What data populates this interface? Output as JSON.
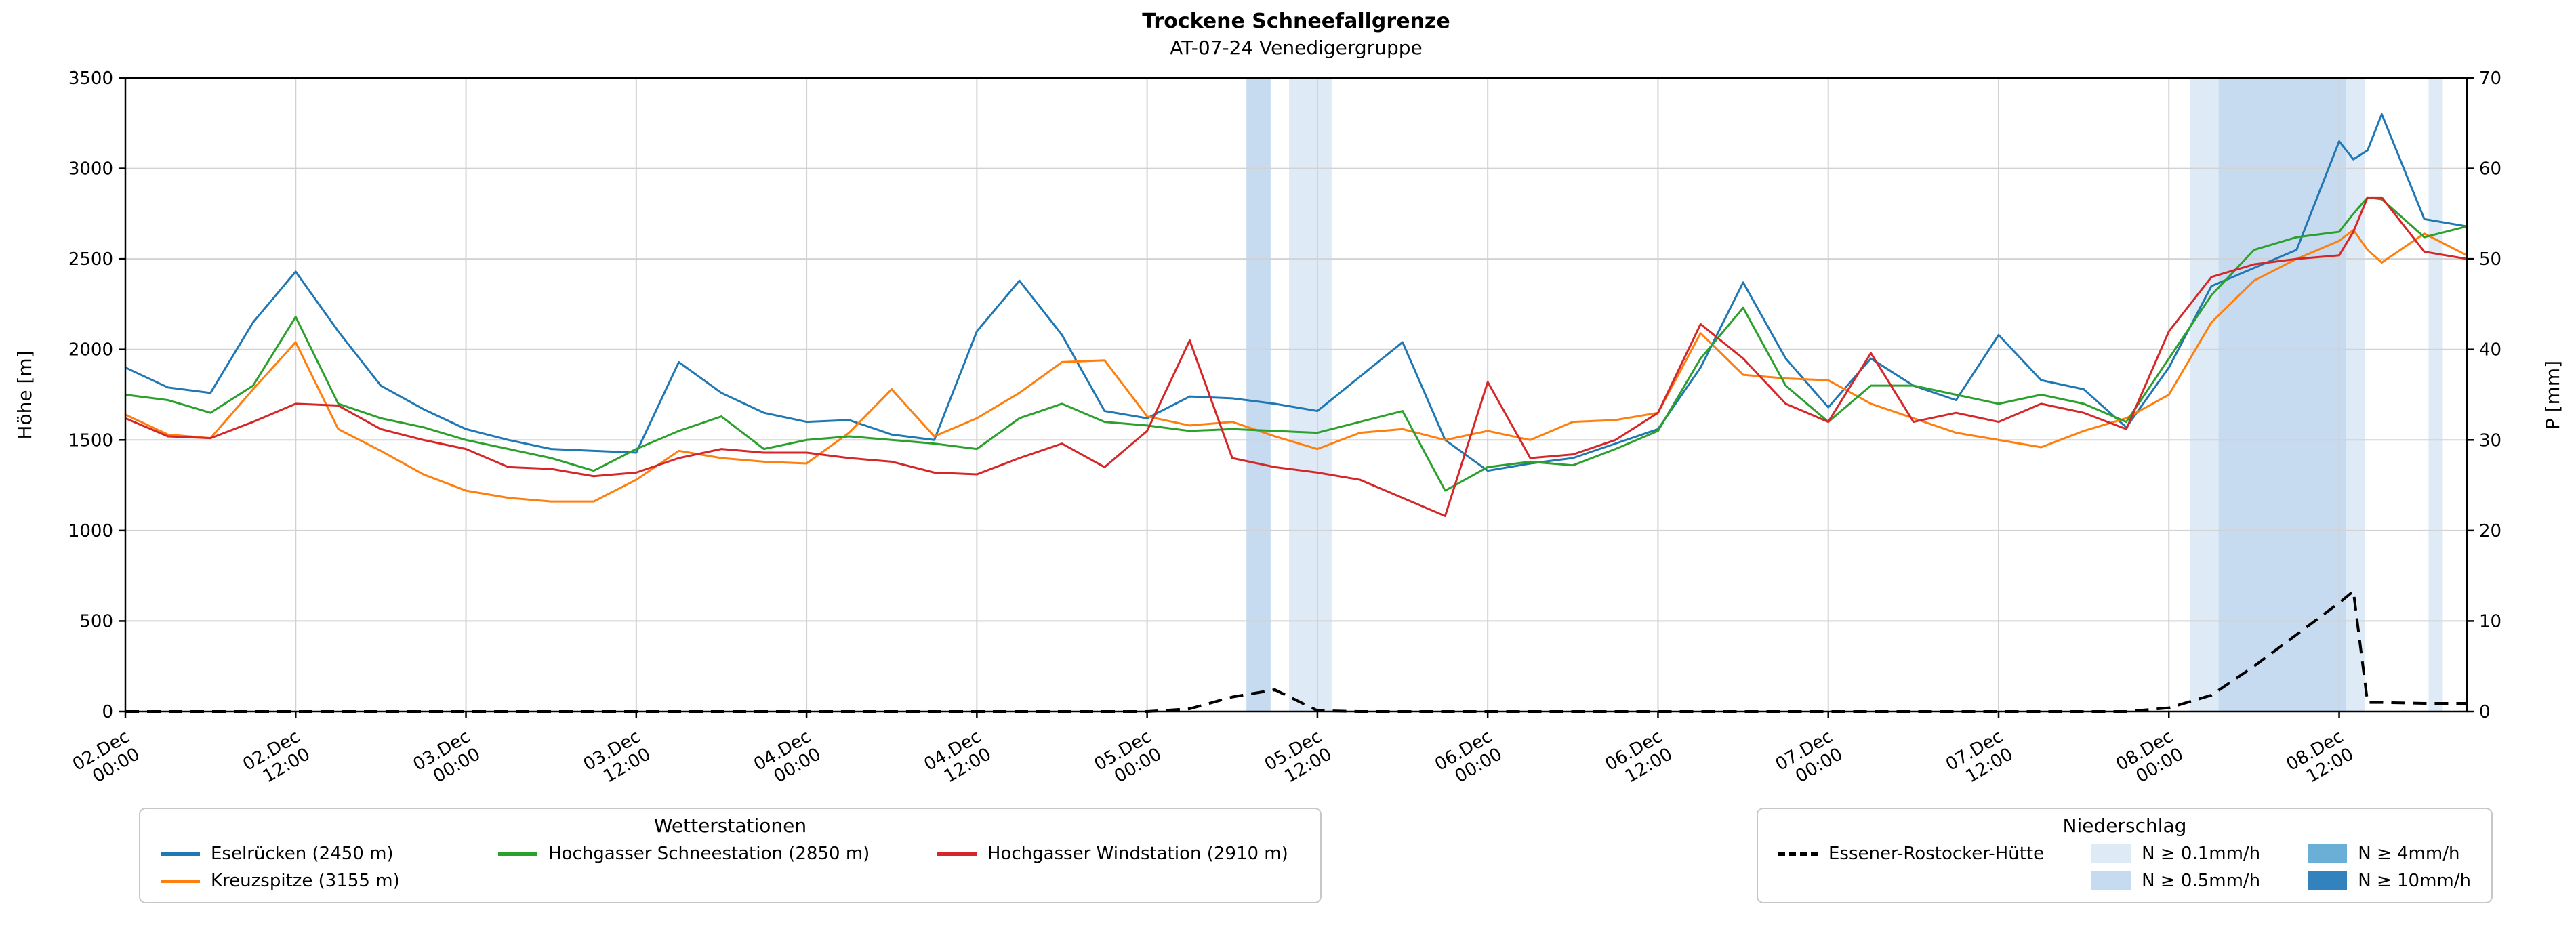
{
  "title": "Trockene Schneefallgrenze",
  "subtitle": "AT-07-24 Venedigergruppe",
  "axes": {
    "y_left": {
      "label": "Höhe [m]",
      "min": 0,
      "max": 3500,
      "ticks": [
        0,
        500,
        1000,
        1500,
        2000,
        2500,
        3000,
        3500
      ]
    },
    "y_right": {
      "label": "P [mm]",
      "min": 0,
      "max": 70,
      "ticks": [
        0,
        10,
        20,
        30,
        40,
        50,
        60,
        70
      ]
    },
    "x": {
      "min": 0,
      "max": 165,
      "ticks": [
        {
          "h": 0,
          "line1": "02.Dec",
          "line2": "00:00"
        },
        {
          "h": 12,
          "line1": "02.Dec",
          "line2": "12:00"
        },
        {
          "h": 24,
          "line1": "03.Dec",
          "line2": "00:00"
        },
        {
          "h": 36,
          "line1": "03.Dec",
          "line2": "12:00"
        },
        {
          "h": 48,
          "line1": "04.Dec",
          "line2": "00:00"
        },
        {
          "h": 60,
          "line1": "04.Dec",
          "line2": "12:00"
        },
        {
          "h": 72,
          "line1": "05.Dec",
          "line2": "00:00"
        },
        {
          "h": 84,
          "line1": "05.Dec",
          "line2": "12:00"
        },
        {
          "h": 96,
          "line1": "06.Dec",
          "line2": "00:00"
        },
        {
          "h": 108,
          "line1": "06.Dec",
          "line2": "12:00"
        },
        {
          "h": 120,
          "line1": "07.Dec",
          "line2": "00:00"
        },
        {
          "h": 132,
          "line1": "07.Dec",
          "line2": "12:00"
        },
        {
          "h": 144,
          "line1": "08.Dec",
          "line2": "00:00"
        },
        {
          "h": 156,
          "line1": "08.Dec",
          "line2": "12:00"
        }
      ]
    }
  },
  "chart_data": {
    "type": "line",
    "x_unit": "hours since 02.Dec 00:00",
    "x": [
      0,
      3,
      6,
      9,
      12,
      15,
      18,
      21,
      24,
      27,
      30,
      33,
      36,
      39,
      42,
      45,
      48,
      51,
      54,
      57,
      60,
      63,
      66,
      69,
      72,
      75,
      78,
      81,
      84,
      87,
      90,
      93,
      96,
      99,
      102,
      105,
      108,
      111,
      114,
      117,
      120,
      123,
      126,
      129,
      132,
      135,
      138,
      141,
      144,
      147,
      150,
      153,
      156,
      157,
      158,
      159,
      162,
      165
    ],
    "series": [
      {
        "name": "Eselrücken (2450 m)",
        "color": "#1f77b4",
        "axis": "left",
        "style": "solid",
        "values": [
          1900,
          1790,
          1760,
          2150,
          2430,
          2100,
          1800,
          1670,
          1560,
          1500,
          1450,
          1440,
          1430,
          1930,
          1760,
          1650,
          1600,
          1610,
          1530,
          1500,
          2100,
          2380,
          2080,
          1660,
          1620,
          1740,
          1730,
          1700,
          1660,
          1850,
          2040,
          1500,
          1330,
          1370,
          1400,
          1480,
          1560,
          1900,
          2370,
          1950,
          1680,
          1950,
          1800,
          1720,
          2080,
          1830,
          1780,
          1570,
          1900,
          2350,
          2450,
          2550,
          3150,
          3050,
          3100,
          3300,
          2720,
          2680
        ]
      },
      {
        "name": "Kreuzspitze (3155 m)",
        "color": "#ff7f0e",
        "axis": "left",
        "style": "solid",
        "values": [
          1640,
          1530,
          1510,
          1780,
          2040,
          1560,
          1440,
          1310,
          1220,
          1180,
          1160,
          1160,
          1280,
          1440,
          1400,
          1380,
          1370,
          1540,
          1780,
          1520,
          1620,
          1760,
          1930,
          1940,
          1630,
          1580,
          1600,
          1520,
          1450,
          1540,
          1560,
          1500,
          1550,
          1500,
          1600,
          1610,
          1650,
          2090,
          1860,
          1840,
          1830,
          1700,
          1620,
          1540,
          1500,
          1460,
          1550,
          1620,
          1750,
          2150,
          2380,
          2500,
          2600,
          2660,
          2550,
          2480,
          2640,
          2520
        ]
      },
      {
        "name": "Hochgasser Schneestation (2850 m)",
        "color": "#2ca02c",
        "axis": "left",
        "style": "solid",
        "values": [
          1750,
          1720,
          1650,
          1800,
          2180,
          1700,
          1620,
          1570,
          1500,
          1450,
          1400,
          1330,
          1450,
          1550,
          1630,
          1450,
          1500,
          1520,
          1500,
          1480,
          1450,
          1620,
          1700,
          1600,
          1580,
          1550,
          1560,
          1550,
          1540,
          1600,
          1660,
          1220,
          1350,
          1380,
          1360,
          1450,
          1550,
          1950,
          2230,
          1800,
          1600,
          1800,
          1800,
          1750,
          1700,
          1750,
          1700,
          1600,
          1950,
          2300,
          2550,
          2620,
          2650,
          2750,
          2840,
          2830,
          2620,
          2680
        ]
      },
      {
        "name": "Hochgasser Windstation (2910 m)",
        "color": "#d62728",
        "axis": "left",
        "style": "solid",
        "values": [
          1620,
          1520,
          1510,
          1600,
          1700,
          1690,
          1560,
          1500,
          1450,
          1350,
          1340,
          1300,
          1320,
          1400,
          1450,
          1430,
          1430,
          1400,
          1380,
          1320,
          1310,
          1400,
          1480,
          1350,
          1550,
          2050,
          1400,
          1350,
          1320,
          1280,
          1180,
          1080,
          1820,
          1400,
          1420,
          1500,
          1650,
          2140,
          1950,
          1700,
          1600,
          1980,
          1600,
          1650,
          1600,
          1700,
          1650,
          1560,
          2100,
          2400,
          2470,
          2500,
          2520,
          2650,
          2840,
          2840,
          2540,
          2500
        ]
      },
      {
        "name": "Essener-Rostocker-Hütte",
        "color": "#000000",
        "axis": "right",
        "style": "dashed",
        "values": [
          0,
          0,
          0,
          0,
          0,
          0,
          0,
          0,
          0,
          0,
          0,
          0,
          0,
          0,
          0,
          0,
          0,
          0,
          0,
          0,
          0,
          0,
          0,
          0,
          0,
          0.3,
          1.6,
          2.4,
          0.1,
          0,
          0,
          0,
          0,
          0,
          0,
          0,
          0,
          0,
          0,
          0,
          0,
          0,
          0,
          0,
          0,
          0,
          0,
          0,
          0.4,
          1.8,
          5.0,
          8.5,
          12.0,
          13.3,
          1.0,
          1.0,
          0.9,
          0.9
        ]
      }
    ],
    "precip_bands": {
      "levels": [
        {
          "label": "N ≥ 0.1mm/h",
          "color": "#deebf7"
        },
        {
          "label": "N ≥ 0.5mm/h",
          "color": "#c6dbef"
        },
        {
          "label": "N ≥ 4mm/h",
          "color": "#6baed6"
        },
        {
          "label": "N ≥ 10mm/h",
          "color": "#3182bd"
        }
      ],
      "bands": [
        {
          "start": 79,
          "end": 80.7,
          "level": "N ≥ 0.5mm/h"
        },
        {
          "start": 82,
          "end": 85,
          "level": "N ≥ 0.1mm/h"
        },
        {
          "start": 145.5,
          "end": 147.5,
          "level": "N ≥ 0.1mm/h"
        },
        {
          "start": 147.5,
          "end": 156.5,
          "level": "N ≥ 0.5mm/h"
        },
        {
          "start": 156.5,
          "end": 157.8,
          "level": "N ≥ 0.1mm/h"
        },
        {
          "start": 162.3,
          "end": 163.3,
          "level": "N ≥ 0.1mm/h"
        }
      ]
    }
  },
  "legends": {
    "wetterstationen": {
      "title": "Wetterstationen"
    },
    "niederschlag": {
      "title": "Niederschlag"
    }
  }
}
